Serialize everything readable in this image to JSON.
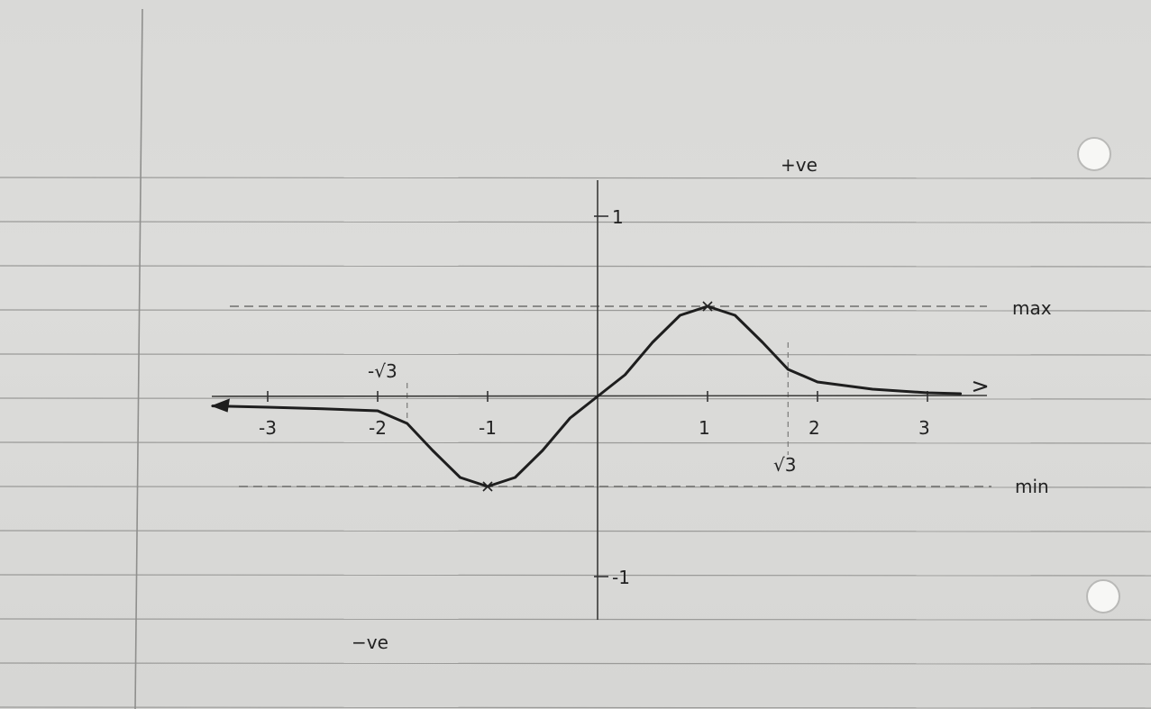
{
  "chart_data": {
    "type": "line",
    "x_ticks": [
      {
        "value": -3,
        "label": "-3"
      },
      {
        "value": -2,
        "label": "-2"
      },
      {
        "value": -1,
        "label": "-1"
      },
      {
        "value": 1,
        "label": "1"
      },
      {
        "value": 2,
        "label": "2"
      },
      {
        "value": 3,
        "label": "3"
      }
    ],
    "y_ticks": [
      {
        "value": 1,
        "label": "1"
      },
      {
        "value": -1,
        "label": "-1"
      }
    ],
    "xlim": [
      -3.5,
      3.5
    ],
    "ylim": [
      -1.0,
      1.0
    ],
    "series": [
      {
        "x": [
          -3.5,
          -3,
          -2.5,
          -2,
          -1.732,
          -1.5,
          -1.25,
          -1,
          -0.75,
          -0.5,
          -0.25,
          0,
          0.25,
          0.5,
          0.75,
          1,
          1.25,
          1.5,
          1.732,
          2,
          2.5,
          3,
          3.3
        ],
        "y": [
          -0.053,
          -0.06,
          -0.069,
          -0.08,
          -0.15,
          -0.3,
          -0.45,
          -0.5,
          -0.45,
          -0.3,
          -0.12,
          0,
          0.12,
          0.3,
          0.45,
          0.5,
          0.45,
          0.3,
          0.15,
          0.08,
          0.04,
          0.02,
          0.015
        ]
      }
    ],
    "annotations": {
      "positive": "+ve",
      "negative": "−ve",
      "max": "max",
      "min": "min",
      "sqrt3_pos": "√3",
      "sqrt3_neg": "-√3"
    },
    "guides": {
      "max_y": 0.5,
      "min_y": -0.5,
      "root3": 1.732
    },
    "grid": false
  }
}
